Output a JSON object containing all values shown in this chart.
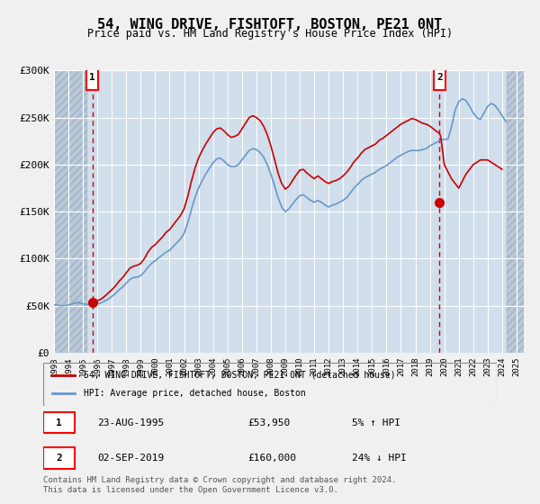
{
  "title": "54, WING DRIVE, FISHTOFT, BOSTON, PE21 0NT",
  "subtitle": "Price paid vs. HM Land Registry's House Price Index (HPI)",
  "legend_line1": "54, WING DRIVE, FISHTOFT, BOSTON, PE21 0NT (detached house)",
  "legend_line2": "HPI: Average price, detached house, Boston",
  "footnote": "Contains HM Land Registry data © Crown copyright and database right 2024.\nThis data is licensed under the Open Government Licence v3.0.",
  "transaction1_label": "1",
  "transaction1_date": "23-AUG-1995",
  "transaction1_price": "£53,950",
  "transaction1_hpi": "5% ↑ HPI",
  "transaction2_label": "2",
  "transaction2_date": "02-SEP-2019",
  "transaction2_price": "£160,000",
  "transaction2_hpi": "24% ↓ HPI",
  "sale1_year": 1995.65,
  "sale1_price": 53950,
  "sale2_year": 2019.67,
  "sale2_price": 160000,
  "ylim": [
    0,
    300000
  ],
  "yticks": [
    0,
    50000,
    100000,
    150000,
    200000,
    250000,
    300000
  ],
  "ytick_labels": [
    "£0",
    "£50K",
    "£100K",
    "£150K",
    "£200K",
    "£250K",
    "£300K"
  ],
  "xmin": 1993,
  "xmax": 2025.5,
  "background_color": "#f0f0f0",
  "plot_bg_color": "#dce6f0",
  "hatch_color": "#c0c0c0",
  "grid_color": "#ffffff",
  "red_color": "#cc0000",
  "blue_color": "#6699cc",
  "hpi_data": {
    "years": [
      1993.0,
      1993.25,
      1993.5,
      1993.75,
      1994.0,
      1994.25,
      1994.5,
      1994.75,
      1995.0,
      1995.25,
      1995.5,
      1995.75,
      1996.0,
      1996.25,
      1996.5,
      1996.75,
      1997.0,
      1997.25,
      1997.5,
      1997.75,
      1998.0,
      1998.25,
      1998.5,
      1998.75,
      1999.0,
      1999.25,
      1999.5,
      1999.75,
      2000.0,
      2000.25,
      2000.5,
      2000.75,
      2001.0,
      2001.25,
      2001.5,
      2001.75,
      2002.0,
      2002.25,
      2002.5,
      2002.75,
      2003.0,
      2003.25,
      2003.5,
      2003.75,
      2004.0,
      2004.25,
      2004.5,
      2004.75,
      2005.0,
      2005.25,
      2005.5,
      2005.75,
      2006.0,
      2006.25,
      2006.5,
      2006.75,
      2007.0,
      2007.25,
      2007.5,
      2007.75,
      2008.0,
      2008.25,
      2008.5,
      2008.75,
      2009.0,
      2009.25,
      2009.5,
      2009.75,
      2010.0,
      2010.25,
      2010.5,
      2010.75,
      2011.0,
      2011.25,
      2011.5,
      2011.75,
      2012.0,
      2012.25,
      2012.5,
      2012.75,
      2013.0,
      2013.25,
      2013.5,
      2013.75,
      2014.0,
      2014.25,
      2014.5,
      2014.75,
      2015.0,
      2015.25,
      2015.5,
      2015.75,
      2016.0,
      2016.25,
      2016.5,
      2016.75,
      2017.0,
      2017.25,
      2017.5,
      2017.75,
      2018.0,
      2018.25,
      2018.5,
      2018.75,
      2019.0,
      2019.25,
      2019.5,
      2019.75,
      2020.0,
      2020.25,
      2020.5,
      2020.75,
      2021.0,
      2021.25,
      2021.5,
      2021.75,
      2022.0,
      2022.25,
      2022.5,
      2022.75,
      2023.0,
      2023.25,
      2023.5,
      2023.75,
      2024.0,
      2024.25
    ],
    "values": [
      51000,
      50500,
      50000,
      50200,
      51000,
      52000,
      53000,
      53500,
      52000,
      51500,
      51000,
      51500,
      52000,
      53000,
      55000,
      57000,
      60000,
      63000,
      67000,
      70000,
      74000,
      78000,
      80000,
      80500,
      82000,
      86000,
      91000,
      95000,
      98000,
      101000,
      104000,
      107000,
      109000,
      113000,
      117000,
      121000,
      127000,
      138000,
      152000,
      165000,
      175000,
      183000,
      190000,
      196000,
      202000,
      206000,
      207000,
      204000,
      200000,
      198000,
      198000,
      200000,
      205000,
      210000,
      215000,
      217000,
      216000,
      213000,
      208000,
      200000,
      190000,
      178000,
      165000,
      155000,
      150000,
      153000,
      158000,
      163000,
      167000,
      168000,
      165000,
      162000,
      160000,
      162000,
      160000,
      157000,
      155000,
      157000,
      158000,
      160000,
      162000,
      165000,
      170000,
      175000,
      179000,
      183000,
      186000,
      188000,
      190000,
      192000,
      195000,
      197000,
      199000,
      202000,
      205000,
      208000,
      210000,
      212000,
      214000,
      215000,
      215000,
      215000,
      216000,
      217000,
      220000,
      222000,
      224000,
      226000,
      227000,
      227000,
      240000,
      258000,
      267000,
      270000,
      268000,
      262000,
      255000,
      250000,
      248000,
      255000,
      262000,
      265000,
      263000,
      258000,
      252000,
      246000
    ]
  },
  "price_data": {
    "years": [
      1995.65,
      1995.75,
      1996.0,
      1996.25,
      1996.5,
      1996.75,
      1997.0,
      1997.25,
      1997.5,
      1997.75,
      1998.0,
      1998.25,
      1998.5,
      1998.75,
      1999.0,
      1999.25,
      1999.5,
      1999.75,
      2000.0,
      2000.25,
      2000.5,
      2000.75,
      2001.0,
      2001.25,
      2001.5,
      2001.75,
      2002.0,
      2002.25,
      2002.5,
      2002.75,
      2003.0,
      2003.25,
      2003.5,
      2003.75,
      2004.0,
      2004.25,
      2004.5,
      2004.75,
      2005.0,
      2005.25,
      2005.5,
      2005.75,
      2006.0,
      2006.25,
      2006.5,
      2006.75,
      2007.0,
      2007.25,
      2007.5,
      2007.75,
      2008.0,
      2008.25,
      2008.5,
      2008.75,
      2009.0,
      2009.25,
      2009.5,
      2009.75,
      2010.0,
      2010.25,
      2010.5,
      2010.75,
      2011.0,
      2011.25,
      2011.5,
      2011.75,
      2012.0,
      2012.25,
      2012.5,
      2012.75,
      2013.0,
      2013.25,
      2013.5,
      2013.75,
      2014.0,
      2014.25,
      2014.5,
      2014.75,
      2015.0,
      2015.25,
      2015.5,
      2015.75,
      2016.0,
      2016.25,
      2016.5,
      2016.75,
      2017.0,
      2017.25,
      2017.5,
      2017.75,
      2018.0,
      2018.25,
      2018.5,
      2018.75,
      2019.0,
      2019.25,
      2019.5,
      2019.67,
      2019.75,
      2020.0,
      2020.5,
      2021.0,
      2021.5,
      2022.0,
      2022.5,
      2023.0,
      2023.5,
      2024.0
    ],
    "values": [
      53950,
      54500,
      55500,
      57000,
      60000,
      63500,
      67000,
      71000,
      76000,
      80000,
      85000,
      90000,
      92000,
      93000,
      95000,
      100000,
      107000,
      112000,
      115000,
      119000,
      123000,
      128000,
      131000,
      136000,
      141000,
      146000,
      153000,
      166000,
      182000,
      196000,
      207000,
      215000,
      222000,
      228000,
      234000,
      238000,
      239000,
      236000,
      232000,
      229000,
      230000,
      232000,
      238000,
      244000,
      250000,
      252000,
      250000,
      247000,
      241000,
      232000,
      220000,
      206000,
      191000,
      180000,
      174000,
      177000,
      183000,
      189000,
      194000,
      195000,
      191000,
      188000,
      185000,
      188000,
      185000,
      182000,
      180000,
      182000,
      183000,
      185000,
      188000,
      192000,
      197000,
      203000,
      207000,
      212000,
      216000,
      218000,
      220000,
      222000,
      226000,
      228000,
      231000,
      234000,
      237000,
      240000,
      243000,
      245000,
      247000,
      249000,
      248000,
      246000,
      244000,
      243000,
      241000,
      238000,
      235000,
      233000,
      230000,
      200000,
      185000,
      175000,
      190000,
      200000,
      205000,
      205000,
      200000,
      195000
    ]
  }
}
